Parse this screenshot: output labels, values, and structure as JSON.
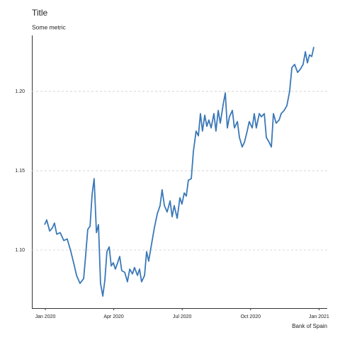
{
  "chart_data": {
    "type": "line",
    "title": "Title",
    "subtitle": "Some metric",
    "source": "Bank of Spain",
    "series": [
      {
        "color": "#3a78b8",
        "x": [
          -0.03,
          0.06,
          0.19,
          0.31,
          0.4,
          0.5,
          0.65,
          0.81,
          0.96,
          1.12,
          1.24,
          1.37,
          1.52,
          1.68,
          1.77,
          1.86,
          1.96,
          2.05,
          2.14,
          2.24,
          2.33,
          2.42,
          2.52,
          2.61,
          2.7,
          2.8,
          2.89,
          2.98,
          3.07,
          3.17,
          3.26,
          3.35,
          3.48,
          3.6,
          3.7,
          3.82,
          3.91,
          4.04,
          4.13,
          4.22,
          4.35,
          4.44,
          4.53,
          4.66,
          4.78,
          4.91,
          5.03,
          5.12,
          5.22,
          5.34,
          5.47,
          5.56,
          5.65,
          5.78,
          5.9,
          5.99,
          6.09,
          6.18,
          6.27,
          6.4,
          6.49,
          6.61,
          6.71,
          6.8,
          6.89,
          6.99,
          7.08,
          7.17,
          7.27,
          7.39,
          7.48,
          7.58,
          7.67,
          7.8,
          7.89,
          7.98,
          8.07,
          8.2,
          8.29,
          8.42,
          8.51,
          8.63,
          8.73,
          8.85,
          8.94,
          9.07,
          9.16,
          9.25,
          9.38,
          9.47,
          9.6,
          9.69,
          9.81,
          9.91,
          10.0,
          10.12,
          10.25,
          10.34,
          10.47,
          10.59,
          10.71,
          10.81,
          10.93,
          11.06,
          11.18,
          11.3,
          11.4,
          11.49,
          11.58,
          11.68,
          11.77
        ],
        "values": [
          1.116,
          1.119,
          1.112,
          1.114,
          1.117,
          1.11,
          1.111,
          1.106,
          1.107,
          1.099,
          1.092,
          1.084,
          1.079,
          1.082,
          1.097,
          1.113,
          1.115,
          1.135,
          1.145,
          1.111,
          1.116,
          1.079,
          1.071,
          1.081,
          1.099,
          1.102,
          1.09,
          1.092,
          1.088,
          1.092,
          1.096,
          1.087,
          1.086,
          1.08,
          1.088,
          1.085,
          1.089,
          1.084,
          1.088,
          1.08,
          1.084,
          1.099,
          1.093,
          1.104,
          1.114,
          1.123,
          1.128,
          1.138,
          1.128,
          1.124,
          1.131,
          1.121,
          1.128,
          1.12,
          1.133,
          1.129,
          1.136,
          1.134,
          1.144,
          1.145,
          1.162,
          1.175,
          1.172,
          1.186,
          1.175,
          1.185,
          1.178,
          1.182,
          1.177,
          1.186,
          1.175,
          1.188,
          1.18,
          1.192,
          1.199,
          1.177,
          1.184,
          1.188,
          1.177,
          1.181,
          1.171,
          1.165,
          1.168,
          1.175,
          1.181,
          1.177,
          1.186,
          1.177,
          1.186,
          1.184,
          1.186,
          1.171,
          1.168,
          1.165,
          1.186,
          1.18,
          1.182,
          1.186,
          1.188,
          1.191,
          1.2,
          1.215,
          1.217,
          1.212,
          1.214,
          1.217,
          1.225,
          1.218,
          1.223,
          1.222,
          1.228
        ]
      }
    ],
    "xlim": [
      -0.59,
      12.36
    ],
    "xticks": [
      {
        "value": 0,
        "label": "Jan 2020"
      },
      {
        "value": 3,
        "label": "Apr 2020"
      },
      {
        "value": 6,
        "label": "Jul 2020"
      },
      {
        "value": 9,
        "label": "Oct 2020"
      },
      {
        "value": 12,
        "label": "Jan 2021"
      }
    ],
    "ylim": [
      1.0634,
      1.2353
    ],
    "yticks": [
      {
        "value": 1.1,
        "label": "1.10"
      },
      1.15,
      {
        "value": 1.2,
        "label": "1.20"
      }
    ],
    "grid": true
  }
}
